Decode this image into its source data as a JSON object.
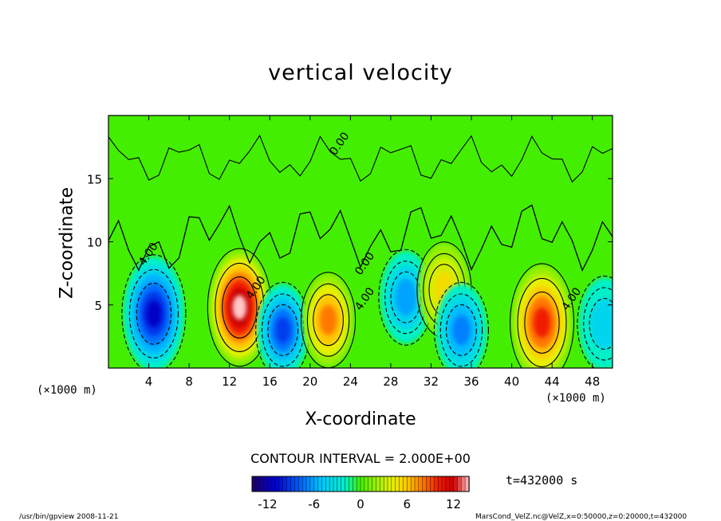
{
  "chart_data": {
    "type": "heatmap",
    "title": "vertical velocity",
    "xlabel": "X-coordinate",
    "ylabel": "Z-coordinate",
    "x_unit": "(×1000 m)",
    "xlim": [
      0,
      50
    ],
    "ylim": [
      0,
      20
    ],
    "x_ticks": [
      4,
      8,
      12,
      16,
      20,
      24,
      28,
      32,
      36,
      40,
      44,
      48
    ],
    "y_ticks": [
      5,
      10,
      15
    ],
    "contour_interval_text": "CONTOUR INTERVAL = 2.000E+00",
    "contour_labels": [
      "0.00",
      "4.00",
      "-4.00"
    ],
    "colorbar": {
      "min": -14,
      "max": 14,
      "ticks": [
        -12,
        -6,
        0,
        6,
        12
      ]
    },
    "features": [
      {
        "x": 4.5,
        "z": 4.3,
        "value": -11
      },
      {
        "x": 13,
        "z": 4.8,
        "value": 14
      },
      {
        "x": 17.3,
        "z": 3.0,
        "value": -9
      },
      {
        "x": 21.8,
        "z": 3.8,
        "value": 8
      },
      {
        "x": 29.5,
        "z": 5.6,
        "value": -6
      },
      {
        "x": 33.3,
        "z": 6.2,
        "value": 5
      },
      {
        "x": 35,
        "z": 3.0,
        "value": -7
      },
      {
        "x": 43,
        "z": 3.6,
        "value": 10
      },
      {
        "x": 49.2,
        "z": 3.5,
        "value": -4
      }
    ]
  },
  "time_label": "t=432000 s",
  "footer_left": "/usr/bin/gpview   2008-11-21",
  "footer_right": "MarsCond_VelZ.nc@VelZ,x=0:50000,z=0:20000,t=432000",
  "colors": {
    "neutral": "#44ee00",
    "positive_peak": "#ffffff",
    "negative_peak": "#200070"
  }
}
